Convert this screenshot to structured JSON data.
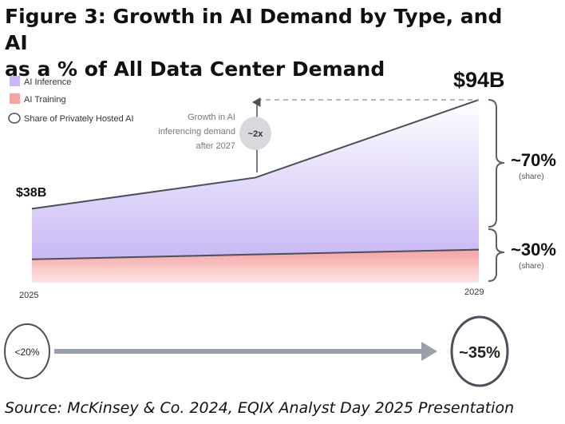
{
  "title_line1": "Figure 3: Growth in AI Demand by Type, and AI",
  "title_line2": "as a % of All Data Center Demand",
  "source": "Source: McKinsey & Co. 2024, EQIX Analyst Day 2025 Presentation",
  "colors": {
    "inference": "#c9b8f5",
    "training": "#f5a3a3",
    "line": "#4a4f5c",
    "annotation": "#5a5f6c"
  },
  "chart_data": {
    "type": "area",
    "x": [
      2025,
      2027,
      2029
    ],
    "x_tick_labels": [
      "2025",
      "2029"
    ],
    "series": [
      {
        "name": "AI Training",
        "values": [
          12,
          14.5,
          17
        ]
      },
      {
        "name": "AI Inference",
        "values": [
          26,
          39.5,
          77
        ]
      }
    ],
    "total_labels": {
      "start": "$38B",
      "end": "$94B"
    },
    "ylim": [
      0,
      100
    ],
    "legend": {
      "position": "top-left",
      "items": [
        "AI Inference",
        "AI Training",
        "Share of Privately Hosted AI"
      ]
    },
    "annotation": {
      "text_lines": [
        "Growth in AI",
        "inferencing demand",
        "after 2027"
      ],
      "badge": "~2x"
    },
    "shares": [
      {
        "value": "~70%",
        "sub": "(share)"
      },
      {
        "value": "~30%",
        "sub": "(share)"
      }
    ],
    "privately_hosted": {
      "start": "<20%",
      "end": "~35%"
    }
  }
}
